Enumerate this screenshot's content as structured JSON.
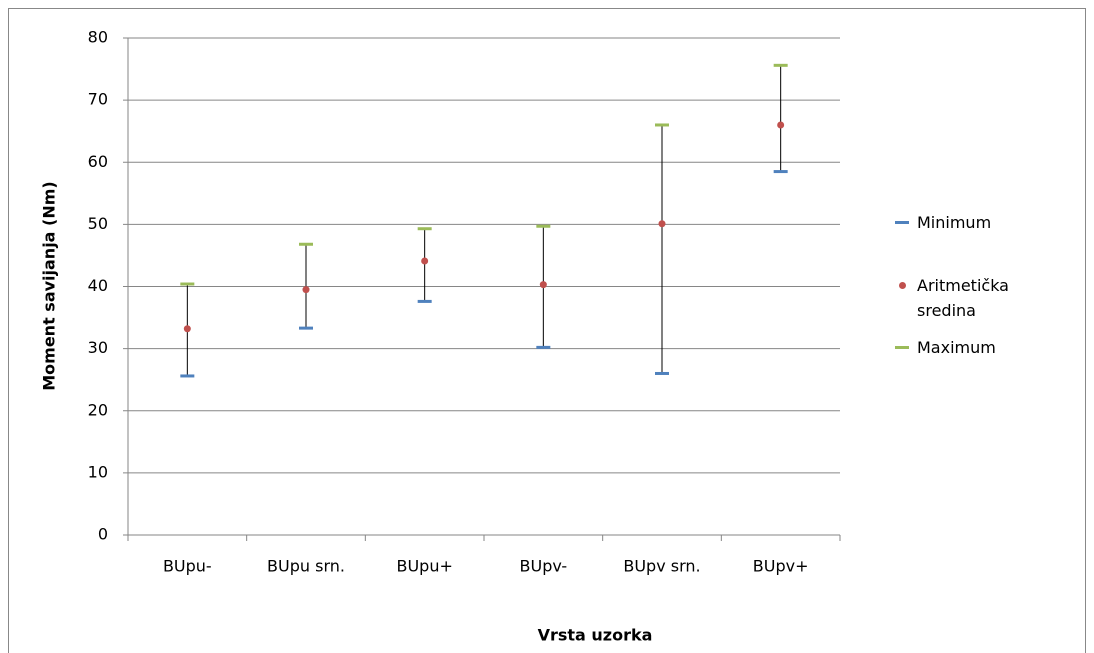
{
  "chart_data": {
    "type": "hilo",
    "x_label": "Vrsta uzorka",
    "y_label": "Moment savijanja  (Nm)",
    "categories": [
      "BUpu-",
      "BUpu srn.",
      "BUpu+",
      "BUpv-",
      "BUpv srn.",
      "BUpv+"
    ],
    "series": [
      {
        "name": "Minimum",
        "color": "#4f81bd",
        "values": [
          25.6,
          33.3,
          37.6,
          30.2,
          26,
          58.5
        ]
      },
      {
        "name": "Aritmetička sredina",
        "color": "#c0504d",
        "values": [
          33.2,
          39.5,
          44.1,
          40.3,
          50.1,
          66
        ]
      },
      {
        "name": "Maximum",
        "color": "#9bbb59",
        "values": [
          40.4,
          46.8,
          49.3,
          49.7,
          66,
          75.6
        ]
      }
    ],
    "ylim": [
      0,
      80
    ],
    "yticks": [
      0,
      10,
      20,
      30,
      40,
      50,
      60,
      70,
      80
    ],
    "grid": true
  }
}
